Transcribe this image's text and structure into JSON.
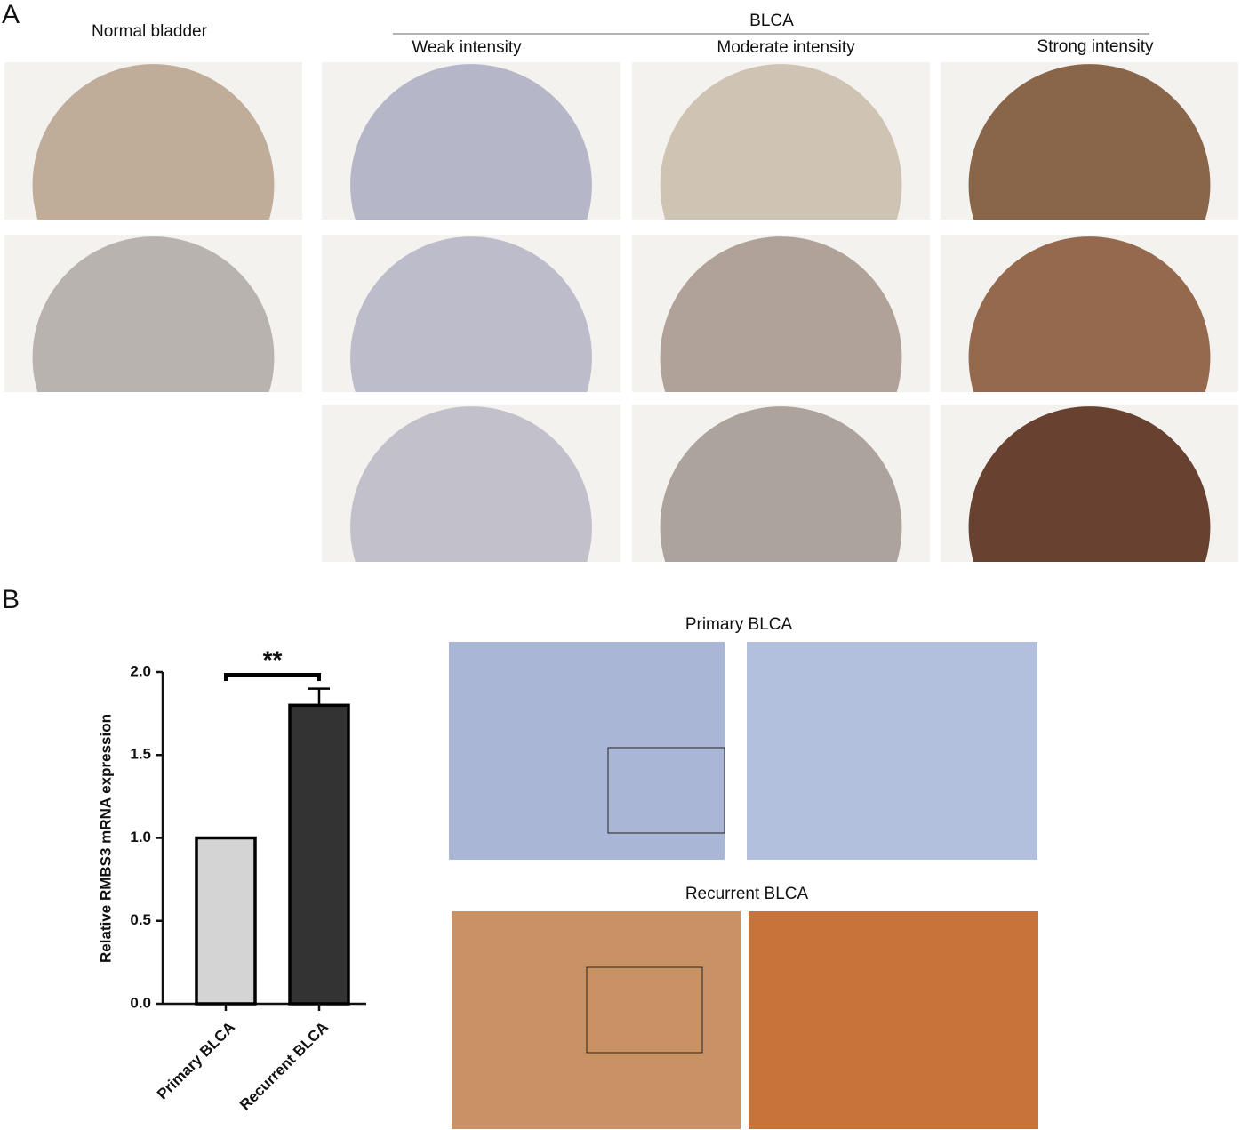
{
  "panel_a": {
    "label": "A",
    "normal_title": "Normal bladder",
    "group_title": "BLCA",
    "columns": [
      "Weak intensity",
      "Moderate intensity",
      "Strong intensity"
    ]
  },
  "panel_b": {
    "label": "B",
    "image_titles": [
      "Primary BLCA",
      "Recurrent BLCA"
    ]
  },
  "chart_data": {
    "type": "bar",
    "y_label": "Relative RMBS3 mRNA expression",
    "categories": [
      "Primary BLCA",
      "Recurrent BLCA"
    ],
    "values": [
      1.0,
      1.8
    ],
    "errors": [
      0,
      0.1
    ],
    "colors": [
      "#d4d4d4",
      "#333333"
    ],
    "significance": "**",
    "ylim": [
      0,
      2.0
    ],
    "yticks": [
      {
        "value": 0,
        "label": "0.0"
      },
      {
        "value": 0.5,
        "label": "0.5"
      },
      {
        "value": 1.0,
        "label": "1.0"
      },
      {
        "value": 1.5,
        "label": "1.5"
      },
      {
        "value": 2.0,
        "label": "2.0"
      }
    ]
  }
}
